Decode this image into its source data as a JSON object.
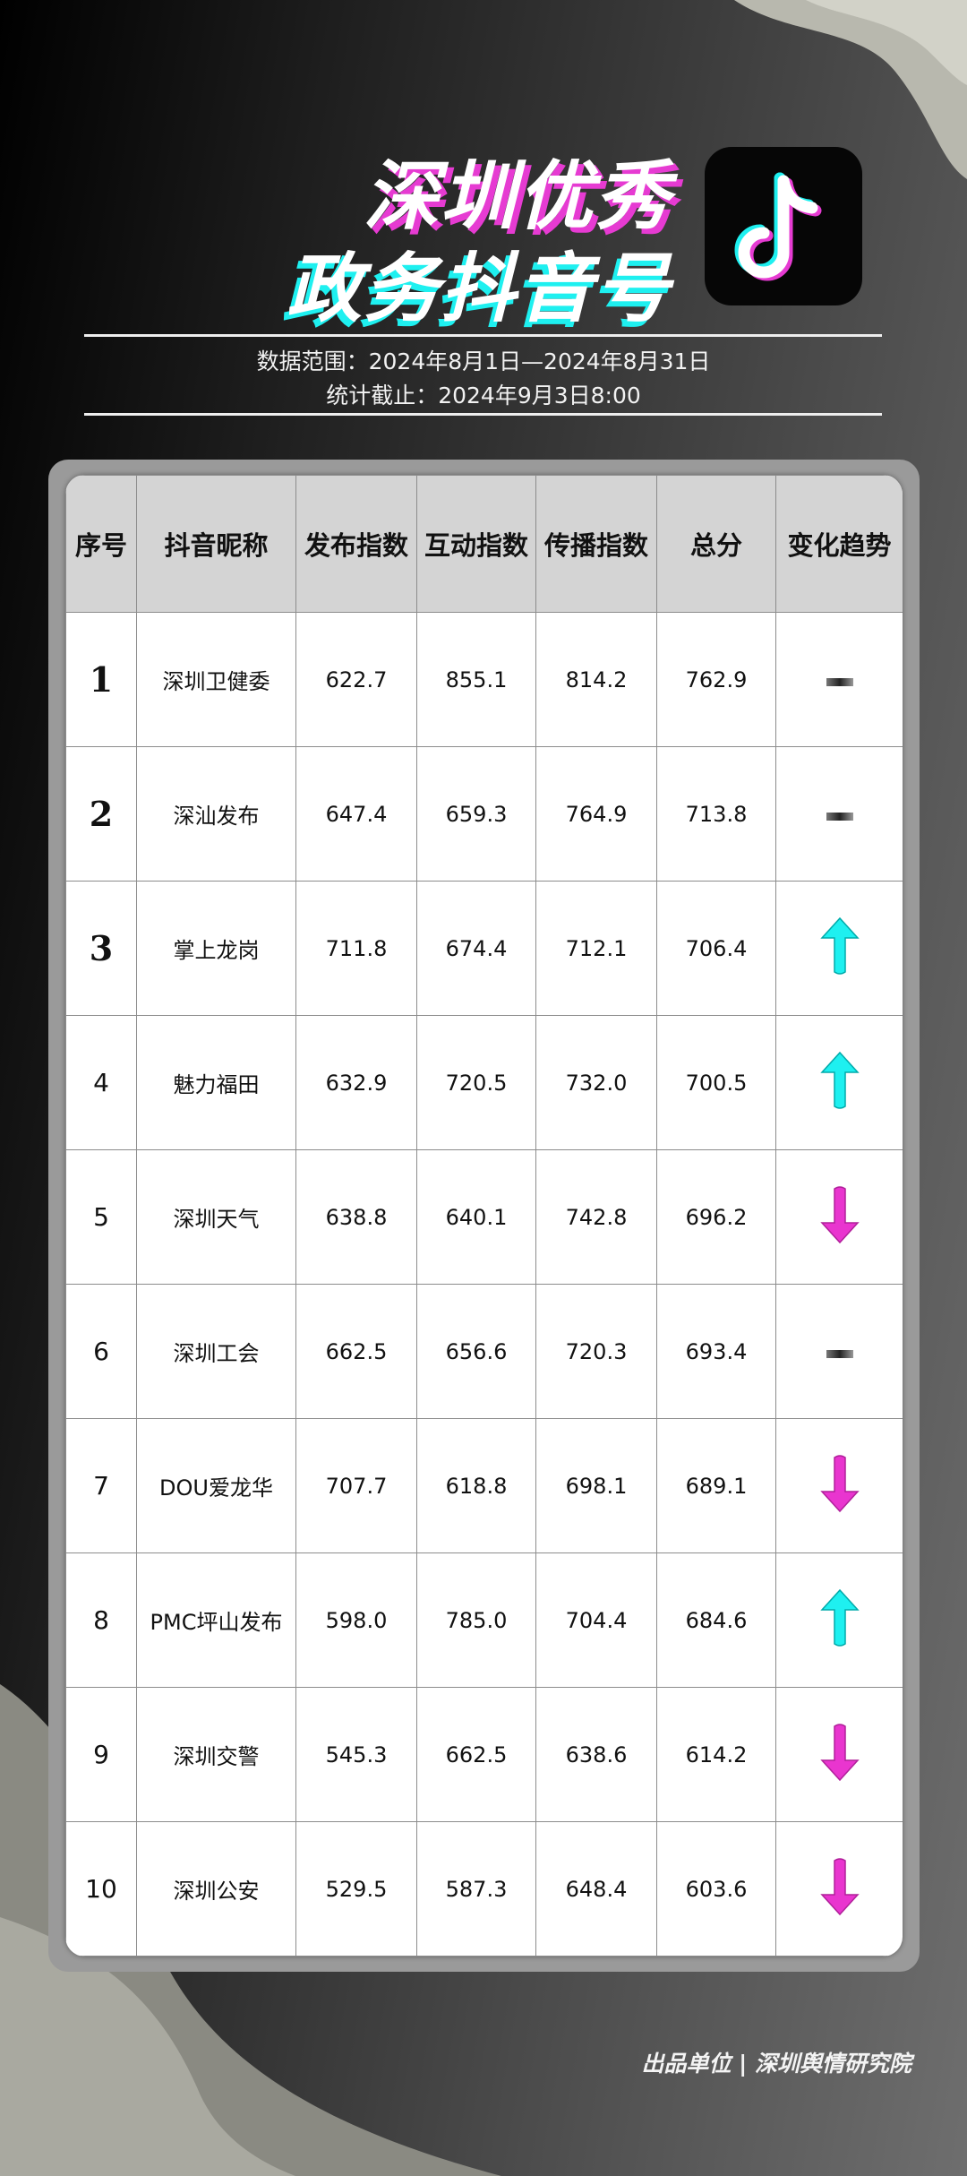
{
  "header": {
    "title_line1": "深圳优秀",
    "title_line2": "政务抖音号",
    "logo": "douyin-logo"
  },
  "meta": {
    "data_range": "数据范围：2024年8月1日—2024年8月31日",
    "cutoff": "统计截止：2024年9月3日8:00"
  },
  "table": {
    "columns": [
      "序号",
      "抖音昵称",
      "发布指数",
      "互动指数",
      "传播指数",
      "总分",
      "变化趋势"
    ],
    "rows": [
      {
        "rank": "1",
        "name": "深圳卫健委",
        "publish": "622.7",
        "interact": "855.1",
        "spread": "814.2",
        "total": "762.9",
        "trend": "flat"
      },
      {
        "rank": "2",
        "name": "深汕发布",
        "publish": "647.4",
        "interact": "659.3",
        "spread": "764.9",
        "total": "713.8",
        "trend": "flat"
      },
      {
        "rank": "3",
        "name": "掌上龙岗",
        "publish": "711.8",
        "interact": "674.4",
        "spread": "712.1",
        "total": "706.4",
        "trend": "up"
      },
      {
        "rank": "4",
        "name": "魅力福田",
        "publish": "632.9",
        "interact": "720.5",
        "spread": "732.0",
        "total": "700.5",
        "trend": "up"
      },
      {
        "rank": "5",
        "name": "深圳天气",
        "publish": "638.8",
        "interact": "640.1",
        "spread": "742.8",
        "total": "696.2",
        "trend": "down"
      },
      {
        "rank": "6",
        "name": "深圳工会",
        "publish": "662.5",
        "interact": "656.6",
        "spread": "720.3",
        "total": "693.4",
        "trend": "flat"
      },
      {
        "rank": "7",
        "name": "DOU爱龙华",
        "publish": "707.7",
        "interact": "618.8",
        "spread": "698.1",
        "total": "689.1",
        "trend": "down"
      },
      {
        "rank": "8",
        "name": "PMC坪山发布",
        "publish": "598.0",
        "interact": "785.0",
        "spread": "704.4",
        "total": "684.6",
        "trend": "up"
      },
      {
        "rank": "9",
        "name": "深圳交警",
        "publish": "545.3",
        "interact": "662.5",
        "spread": "638.6",
        "total": "614.2",
        "trend": "down"
      },
      {
        "rank": "10",
        "name": "深圳公安",
        "publish": "529.5",
        "interact": "587.3",
        "spread": "648.4",
        "total": "603.6",
        "trend": "down"
      }
    ]
  },
  "colors": {
    "up": "#1ef0f0",
    "down": "#e935cf",
    "accent_pink": "#e63bd2",
    "accent_cyan": "#1ef0f0"
  },
  "footer": "出品单位 | 深圳舆情研究院"
}
